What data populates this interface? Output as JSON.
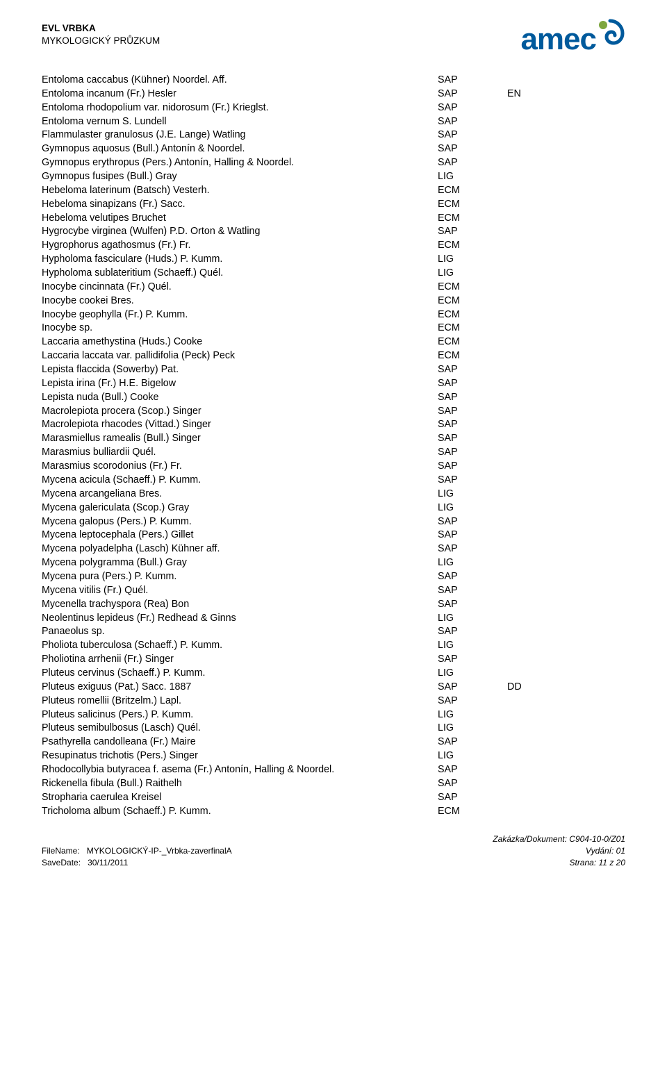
{
  "header": {
    "title": "EVL VRBKA",
    "subtitle": "MYKOLOGICKÝ PRŮZKUM",
    "logo_text": "amec",
    "logo_main_color": "#005a9c",
    "logo_accent_color": "#7ea63f"
  },
  "species_list": [
    {
      "name": "Entoloma caccabus (Kühner) Noordel. Aff.",
      "code": "SAP",
      "status": ""
    },
    {
      "name": "Entoloma incanum (Fr.) Hesler",
      "code": "SAP",
      "status": "EN"
    },
    {
      "name": "Entoloma rhodopolium var. nidorosum (Fr.) Krieglst.",
      "code": "SAP",
      "status": ""
    },
    {
      "name": "Entoloma vernum S. Lundell",
      "code": "SAP",
      "status": ""
    },
    {
      "name": "Flammulaster granulosus (J.E. Lange) Watling",
      "code": "SAP",
      "status": ""
    },
    {
      "name": "Gymnopus aquosus (Bull.) Antonín & Noordel.",
      "code": "SAP",
      "status": ""
    },
    {
      "name": "Gymnopus erythropus (Pers.) Antonín, Halling & Noordel.",
      "code": "SAP",
      "status": ""
    },
    {
      "name": "Gymnopus fusipes (Bull.) Gray",
      "code": "LIG",
      "status": ""
    },
    {
      "name": "Hebeloma laterinum (Batsch) Vesterh.",
      "code": "ECM",
      "status": ""
    },
    {
      "name": "Hebeloma sinapizans (Fr.) Sacc.",
      "code": "ECM",
      "status": ""
    },
    {
      "name": "Hebeloma velutipes Bruchet",
      "code": "ECM",
      "status": ""
    },
    {
      "name": "Hygrocybe virginea (Wulfen) P.D. Orton & Watling",
      "code": "SAP",
      "status": ""
    },
    {
      "name": "Hygrophorus agathosmus (Fr.) Fr.",
      "code": "ECM",
      "status": ""
    },
    {
      "name": "Hypholoma fasciculare (Huds.) P. Kumm.",
      "code": "LIG",
      "status": ""
    },
    {
      "name": "Hypholoma sublateritium (Schaeff.) Quél.",
      "code": "LIG",
      "status": ""
    },
    {
      "name": "Inocybe cincinnata (Fr.) Quél.",
      "code": "ECM",
      "status": ""
    },
    {
      "name": "Inocybe cookei Bres.",
      "code": "ECM",
      "status": ""
    },
    {
      "name": "Inocybe geophylla (Fr.) P. Kumm.",
      "code": "ECM",
      "status": ""
    },
    {
      "name": "Inocybe sp.",
      "code": "ECM",
      "status": ""
    },
    {
      "name": "Laccaria amethystina (Huds.) Cooke",
      "code": "ECM",
      "status": ""
    },
    {
      "name": "Laccaria laccata var. pallidifolia (Peck) Peck",
      "code": "ECM",
      "status": ""
    },
    {
      "name": "Lepista flaccida (Sowerby) Pat.",
      "code": "SAP",
      "status": ""
    },
    {
      "name": "Lepista irina (Fr.) H.E. Bigelow",
      "code": "SAP",
      "status": ""
    },
    {
      "name": "Lepista nuda (Bull.) Cooke",
      "code": "SAP",
      "status": ""
    },
    {
      "name": "Macrolepiota procera (Scop.) Singer",
      "code": "SAP",
      "status": ""
    },
    {
      "name": "Macrolepiota rhacodes (Vittad.) Singer",
      "code": "SAP",
      "status": ""
    },
    {
      "name": "Marasmiellus ramealis (Bull.) Singer",
      "code": "SAP",
      "status": ""
    },
    {
      "name": "Marasmius bulliardii Quél.",
      "code": "SAP",
      "status": ""
    },
    {
      "name": "Marasmius scorodonius (Fr.) Fr.",
      "code": "SAP",
      "status": ""
    },
    {
      "name": "Mycena acicula (Schaeff.) P. Kumm.",
      "code": "SAP",
      "status": ""
    },
    {
      "name": "Mycena arcangeliana Bres.",
      "code": "LIG",
      "status": ""
    },
    {
      "name": "Mycena galericulata (Scop.) Gray",
      "code": "LIG",
      "status": ""
    },
    {
      "name": "Mycena galopus (Pers.) P. Kumm.",
      "code": "SAP",
      "status": ""
    },
    {
      "name": "Mycena leptocephala (Pers.) Gillet",
      "code": "SAP",
      "status": ""
    },
    {
      "name": "Mycena polyadelpha (Lasch) Kühner aff.",
      "code": "SAP",
      "status": ""
    },
    {
      "name": "Mycena polygramma (Bull.) Gray",
      "code": "LIG",
      "status": ""
    },
    {
      "name": "Mycena pura (Pers.) P. Kumm.",
      "code": "SAP",
      "status": ""
    },
    {
      "name": "Mycena vitilis (Fr.) Quél.",
      "code": "SAP",
      "status": ""
    },
    {
      "name": "Mycenella trachyspora (Rea) Bon",
      "code": "SAP",
      "status": ""
    },
    {
      "name": "Neolentinus lepideus (Fr.) Redhead & Ginns",
      "code": "LIG",
      "status": ""
    },
    {
      "name": "Panaeolus sp.",
      "code": "SAP",
      "status": ""
    },
    {
      "name": "Pholiota tuberculosa (Schaeff.) P. Kumm.",
      "code": "LIG",
      "status": ""
    },
    {
      "name": "Pholiotina arrhenii (Fr.) Singer",
      "code": "SAP",
      "status": ""
    },
    {
      "name": "Pluteus cervinus (Schaeff.) P. Kumm.",
      "code": "LIG",
      "status": ""
    },
    {
      "name": "Pluteus exiguus (Pat.) Sacc. 1887",
      "code": "SAP",
      "status": "DD"
    },
    {
      "name": "Pluteus romellii (Britzelm.) Lapl.",
      "code": "SAP",
      "status": ""
    },
    {
      "name": "Pluteus salicinus (Pers.) P. Kumm.",
      "code": "LIG",
      "status": ""
    },
    {
      "name": "Pluteus semibulbosus (Lasch) Quél.",
      "code": "LIG",
      "status": ""
    },
    {
      "name": "Psathyrella candolleana (Fr.) Maire",
      "code": "SAP",
      "status": ""
    },
    {
      "name": "Resupinatus trichotis (Pers.) Singer",
      "code": "LIG",
      "status": ""
    },
    {
      "name": "Rhodocollybia butyracea f. asema (Fr.) Antonín, Halling & Noordel.",
      "code": "SAP",
      "status": ""
    },
    {
      "name": "Rickenella fibula (Bull.) Raithelh",
      "code": "SAP",
      "status": ""
    },
    {
      "name": "Stropharia caerulea Kreisel",
      "code": "SAP",
      "status": ""
    },
    {
      "name": "Tricholoma album (Schaeff.) P. Kumm.",
      "code": "ECM",
      "status": ""
    }
  ],
  "footer": {
    "filename_label": "FileName:",
    "filename": "MYKOLOGICKÝ-IP-_Vrbka-zaverfinalA",
    "savedate_label": "SaveDate:",
    "savedate": "30/11/2011",
    "doc_label": "Zakázka/Dokument: C904-10-0/Z01",
    "edition": "Vydání: 01",
    "page": "Strana: 11 z 20"
  },
  "style": {
    "body_font_size": 14.3,
    "header_font_size": 13.5,
    "footer_font_size": 12,
    "text_color": "#000000",
    "background_color": "#ffffff"
  }
}
